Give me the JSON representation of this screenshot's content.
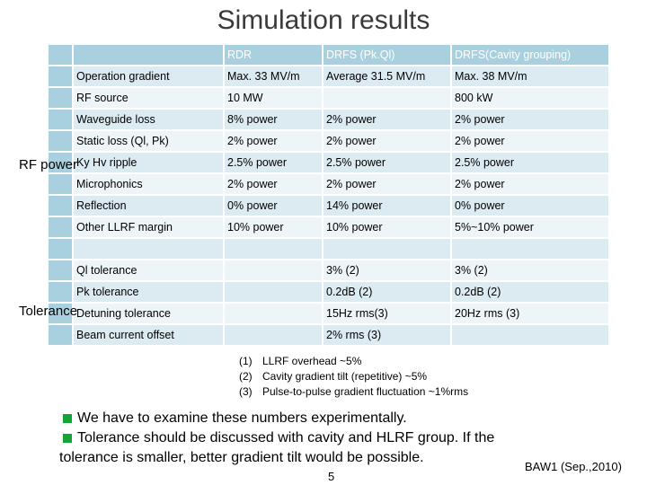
{
  "title": "Simulation results",
  "table": {
    "headers": [
      "",
      "",
      "RDR",
      "DRFS (Pk.Ql)",
      "DRFS(Cavity grouping)"
    ],
    "rows": [
      [
        "",
        "Operation gradient",
        "Max. 33 MV/m",
        "Average 31.5 MV/m",
        "Max. 38 MV/m"
      ],
      [
        "",
        "RF source",
        "10 MW",
        "",
        "800 kW"
      ],
      [
        "",
        "Waveguide loss",
        "8% power",
        "2% power",
        "2% power"
      ],
      [
        "",
        "Static loss (Ql, Pk)",
        "2% power",
        "2% power",
        "2% power"
      ],
      [
        "",
        "Ky Hv ripple",
        "2.5% power",
        "2.5% power",
        "2.5% power"
      ],
      [
        "",
        "Microphonics",
        "2% power",
        "2% power",
        "2% power"
      ],
      [
        "",
        "Reflection",
        "0% power",
        "14% power",
        "0% power"
      ],
      [
        "",
        "Other LLRF margin",
        "10% power",
        "10% power",
        "5%~10% power"
      ],
      [
        "",
        "",
        "",
        "",
        ""
      ],
      [
        "",
        "Ql tolerance",
        "",
        "3% (2)",
        "3% (2)"
      ],
      [
        "",
        "Pk tolerance",
        "",
        "0.2dB (2)",
        "0.2dB (2)"
      ],
      [
        "",
        "Detuning tolerance",
        "",
        "15Hz rms(3)",
        "20Hz rms (3)"
      ],
      [
        "",
        "Beam current offset",
        "",
        "2% rms (3)",
        ""
      ]
    ]
  },
  "groups": {
    "rf_power": "RF power",
    "tolerance": "Tolerance"
  },
  "notes": [
    {
      "num": "(1)",
      "text": "LLRF overhead ~5%"
    },
    {
      "num": "(2)",
      "text": "Cavity gradient tilt (repetitive) ~5%"
    },
    {
      "num": "(3)",
      "text": "Pulse-to-pulse gradient fluctuation ~1%rms"
    }
  ],
  "bullets": [
    "We have to examine these numbers experimentally.",
    "Tolerance should be discussed with cavity  and HLRF group.  If the"
  ],
  "bullet_continuation": "tolerance is smaller, better gradient tilt would be possible.",
  "page_number": "5",
  "conference": "BAW1 (Sep.,2010)",
  "colors": {
    "header": "#a9d0df",
    "row_dark": "#dcebf2",
    "row_light": "#edf5f9",
    "bullet": "#14a535"
  }
}
